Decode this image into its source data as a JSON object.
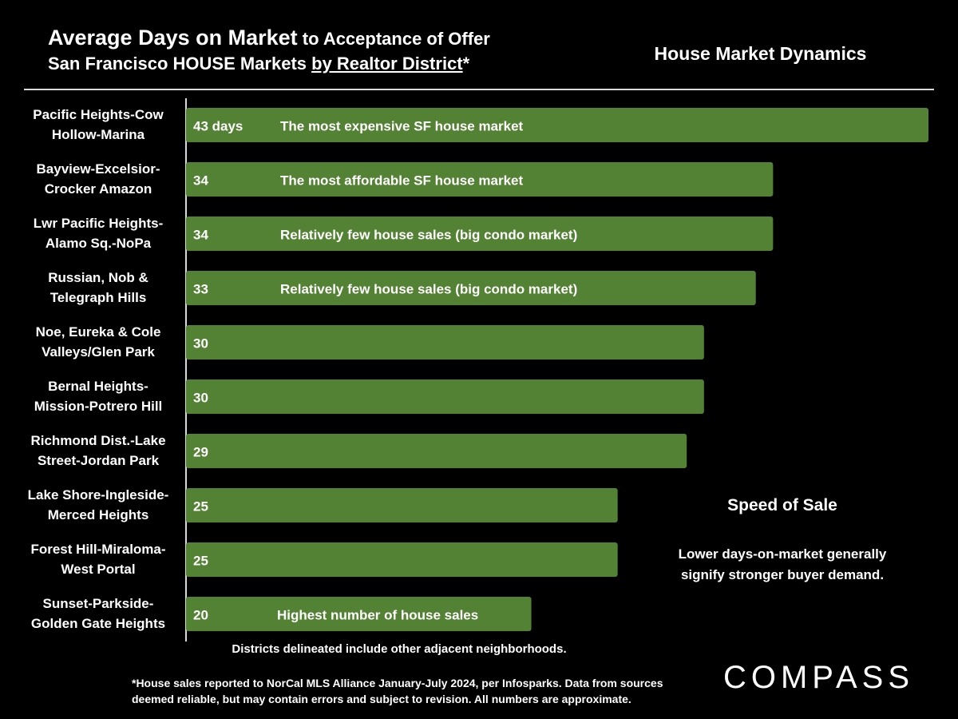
{
  "title": {
    "main": "Average Days on Market",
    "main_sub": " to Acceptance of Offer",
    "line2_prefix": "San Francisco HOUSE Markets ",
    "line2_underlined": "by Realtor District",
    "line2_suffix": "*"
  },
  "right_heading": "House Market Dynamics",
  "speed": {
    "title": "Speed of Sale",
    "text": "Lower days-on-market generally signify stronger buyer demand."
  },
  "districts_note": "Districts delineated include other adjacent neighborhoods.",
  "footnote": "*House sales reported to NorCal MLS Alliance January-July 2024, per Infosparks. Data from sources deemed reliable, but may contain errors and subject to revision. All numbers are approximate.",
  "logo_text": "COMPASS",
  "colors": {
    "bar": "#548235",
    "background": "#000000",
    "text": "#ffffff"
  },
  "chart_data": {
    "type": "bar",
    "orientation": "horizontal",
    "categories": [
      [
        "Pacific Heights-Cow",
        "Hollow-Marina"
      ],
      [
        "Bayview-Excelsior-",
        "Crocker Amazon"
      ],
      [
        "Lwr Pacific Heights-",
        "Alamo Sq.-NoPa"
      ],
      [
        "Russian, Nob &",
        "Telegraph Hills"
      ],
      [
        "Noe, Eureka & Cole",
        "Valleys/Glen Park"
      ],
      [
        "Bernal Heights-",
        "Mission-Potrero Hill"
      ],
      [
        "Richmond Dist.-Lake",
        "Street-Jordan Park"
      ],
      [
        "Lake Shore-Ingleside-",
        "Merced Heights"
      ],
      [
        "Forest Hill-Miraloma-",
        "West Portal"
      ],
      [
        "Sunset-Parkside-",
        "Golden Gate Heights"
      ]
    ],
    "values": [
      43,
      34,
      34,
      33,
      30,
      30,
      29,
      25,
      25,
      20
    ],
    "value_labels": [
      "43 days",
      "34",
      "34",
      "33",
      "30",
      "30",
      "29",
      "25",
      "25",
      "20"
    ],
    "annotations": [
      "The most expensive SF house market",
      "The most affordable SF house market",
      "Relatively few house sales (big condo market)",
      "Relatively few house sales (big condo market)",
      "",
      "",
      "",
      "",
      "",
      "Highest number of house sales"
    ],
    "xlim": [
      0,
      43
    ]
  }
}
